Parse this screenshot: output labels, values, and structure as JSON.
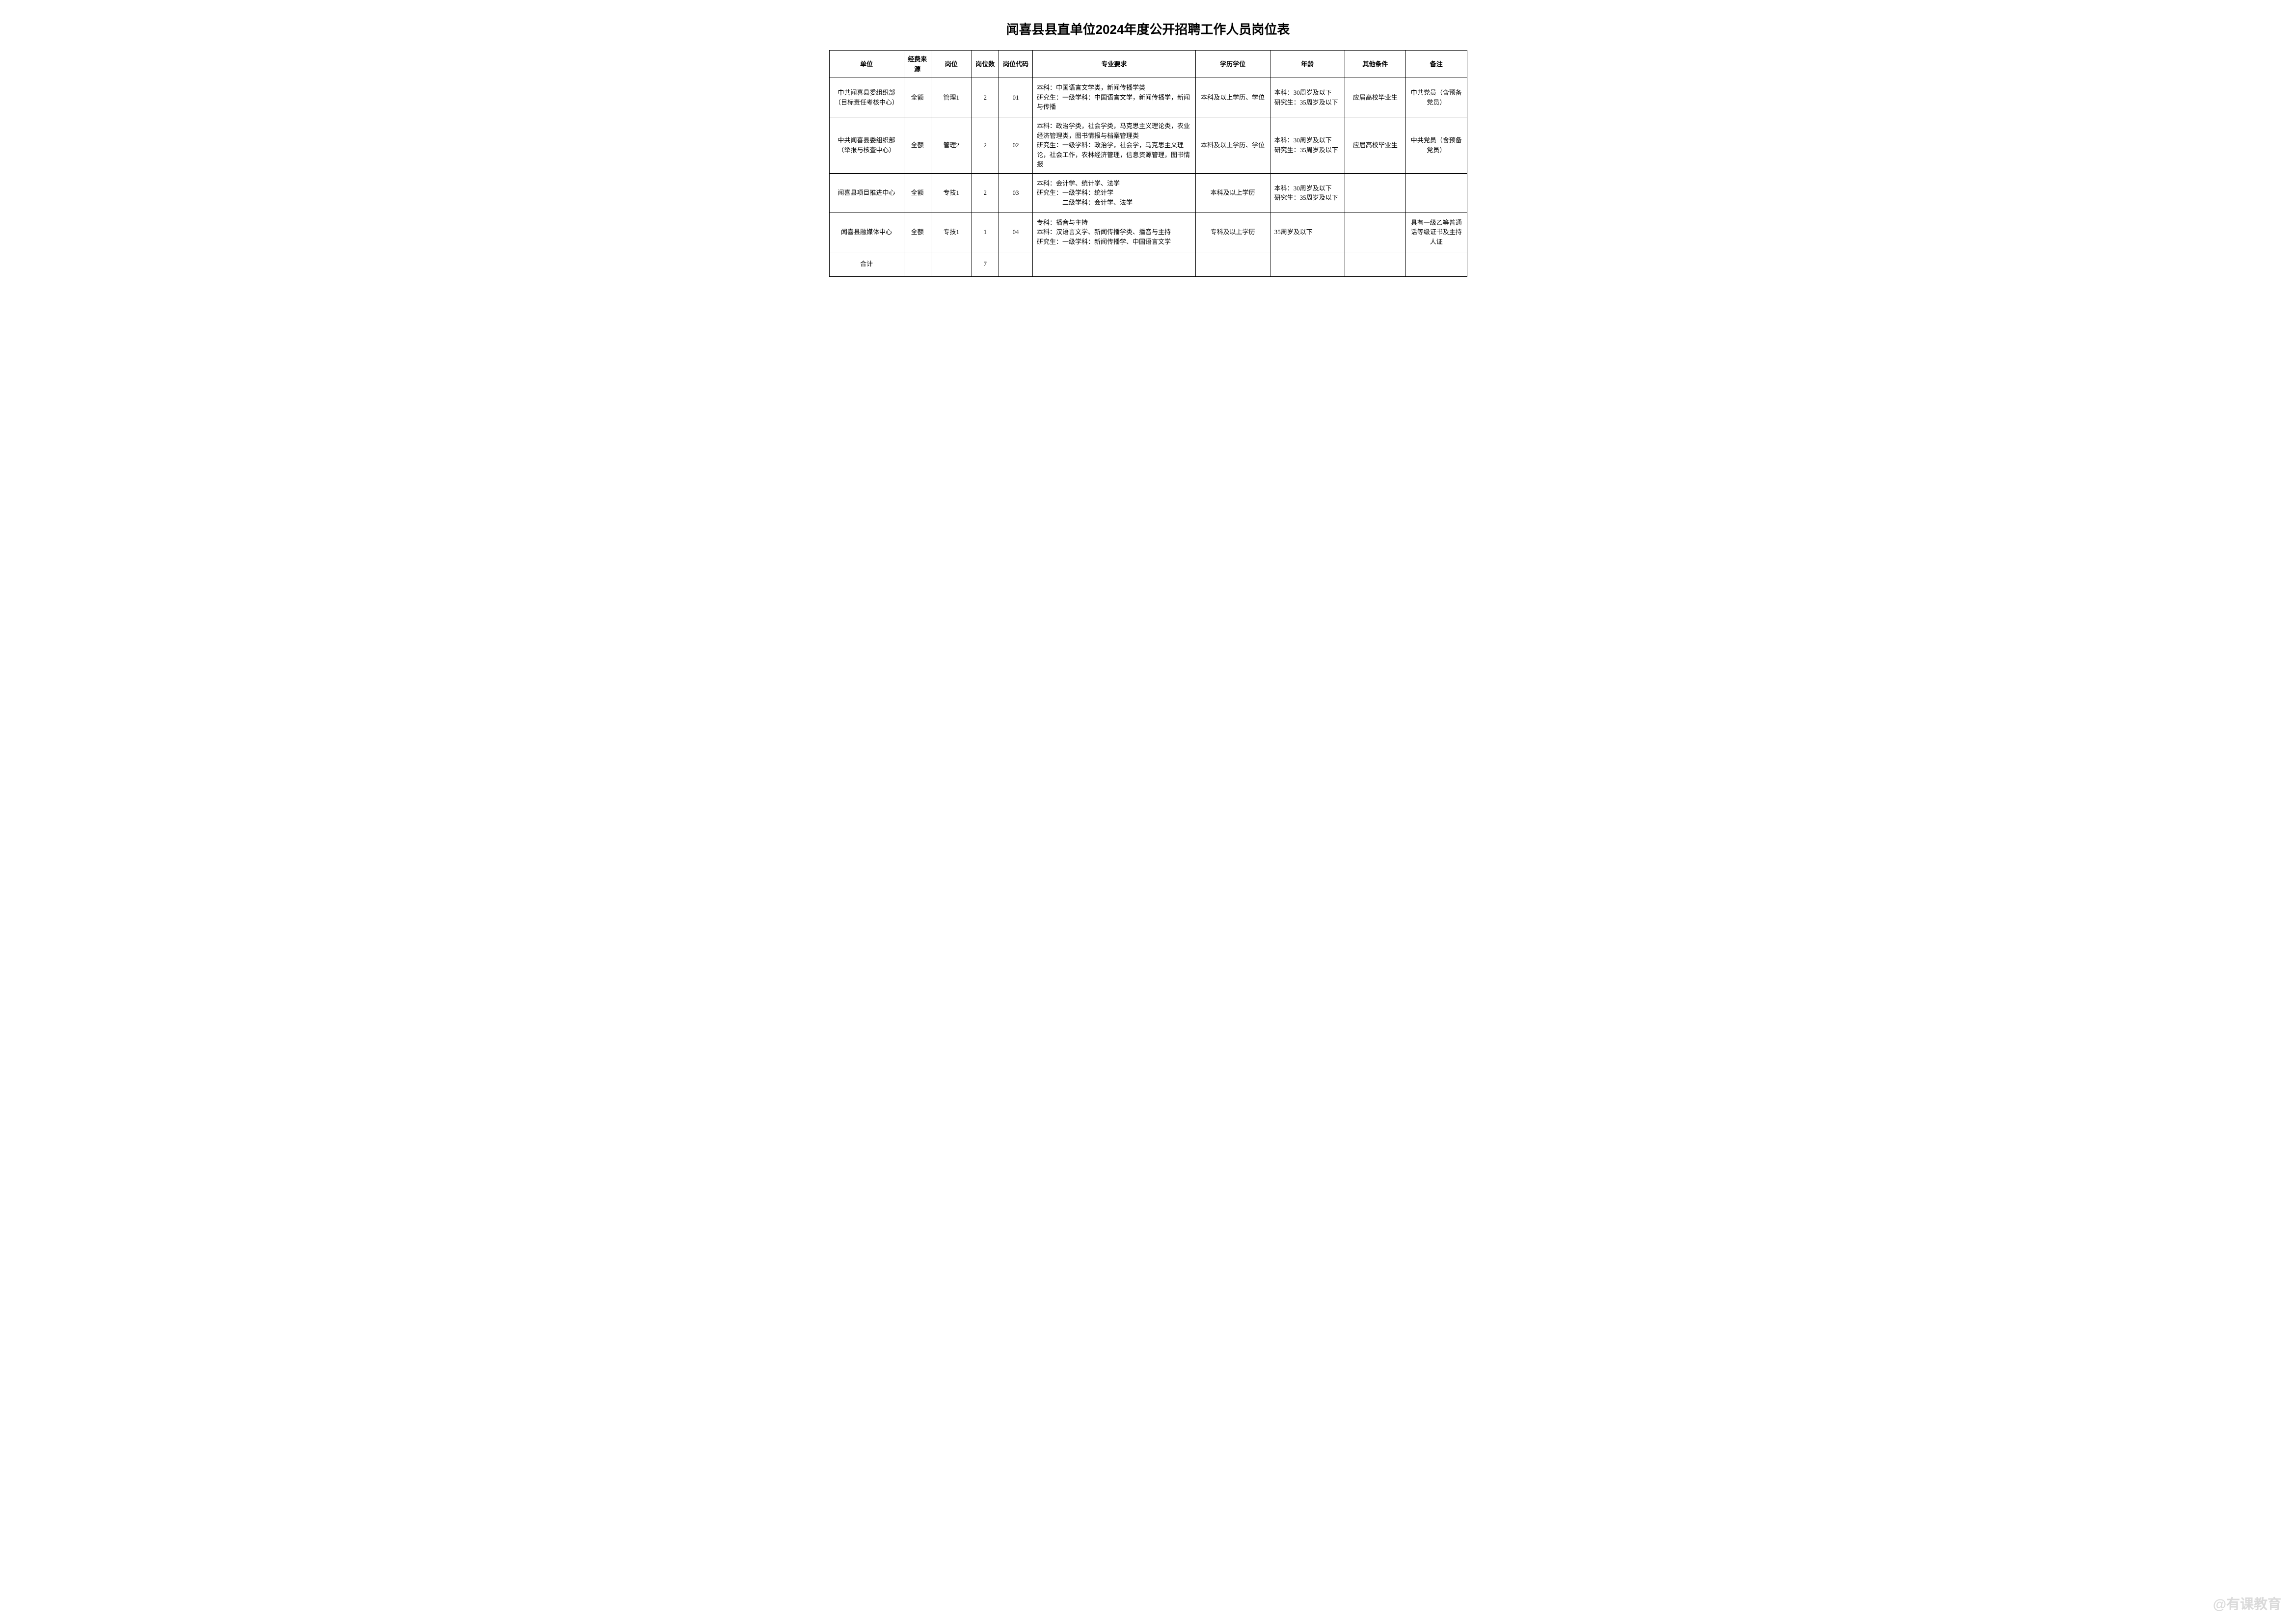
{
  "title": "闻喜县县直单位2024年度公开招聘工作人员岗位表",
  "headers": {
    "unit": "单位",
    "fund": "经费来源",
    "post": "岗位",
    "count": "岗位数",
    "code": "岗位代码",
    "major": "专业要求",
    "edu": "学历学位",
    "age": "年龄",
    "other": "其他条件",
    "note": "备注"
  },
  "rows": [
    {
      "unit": "中共闻喜县委组织部（目标责任考核中心）",
      "fund": "全额",
      "post": "管理1",
      "count": "2",
      "code": "01",
      "major": "本科：中国语言文学类，新闻传播学类\n研究生：一级学科：中国语言文学，新闻传播学，新闻与传播",
      "edu": "本科及以上学历、学位",
      "age": "本科：30周岁及以下\n研究生：35周岁及以下",
      "other": "应届高校毕业生",
      "note": "中共党员（含预备党员）"
    },
    {
      "unit": "中共闻喜县委组织部（举报与核查中心）",
      "fund": "全额",
      "post": "管理2",
      "count": "2",
      "code": "02",
      "major": "本科：政治学类，社会学类，马克思主义理论类，农业经济管理类，图书情报与档案管理类\n研究生：一级学科：政治学，社会学，马克思主义理论，社会工作，农林经济管理，信息资源管理，图书情报",
      "edu": "本科及以上学历、学位",
      "age": "本科：30周岁及以下\n研究生：35周岁及以下",
      "other": "应届高校毕业生",
      "note": "中共党员（含预备党员）"
    },
    {
      "unit": "闻喜县项目推进中心",
      "fund": "全额",
      "post": "专技1",
      "count": "2",
      "code": "03",
      "major": "本科：会计学、统计学、法学\n研究生：一级学科：统计学\n　　　　二级学科：会计学、法学",
      "edu": "本科及以上学历",
      "age": "本科：30周岁及以下\n研究生：35周岁及以下",
      "other": "",
      "note": ""
    },
    {
      "unit": "闻喜县融媒体中心",
      "fund": "全额",
      "post": "专技1",
      "count": "1",
      "code": "04",
      "major": "专科：播音与主持\n本科：汉语言文学、新闻传播学类、播音与主持\n研究生：一级学科：新闻传播学、中国语言文学",
      "edu": "专科及以上学历",
      "age": "35周岁及以下",
      "other": "",
      "note": "具有一级乙等普通话等级证书及主持人证"
    }
  ],
  "total": {
    "label": "合计",
    "count": "7"
  },
  "watermark": "@有课教育",
  "styling": {
    "title_fontsize": 26,
    "cell_fontsize": 13,
    "border_color": "#000000",
    "background": "#ffffff",
    "watermark_color": "rgba(150,150,150,0.35)"
  }
}
